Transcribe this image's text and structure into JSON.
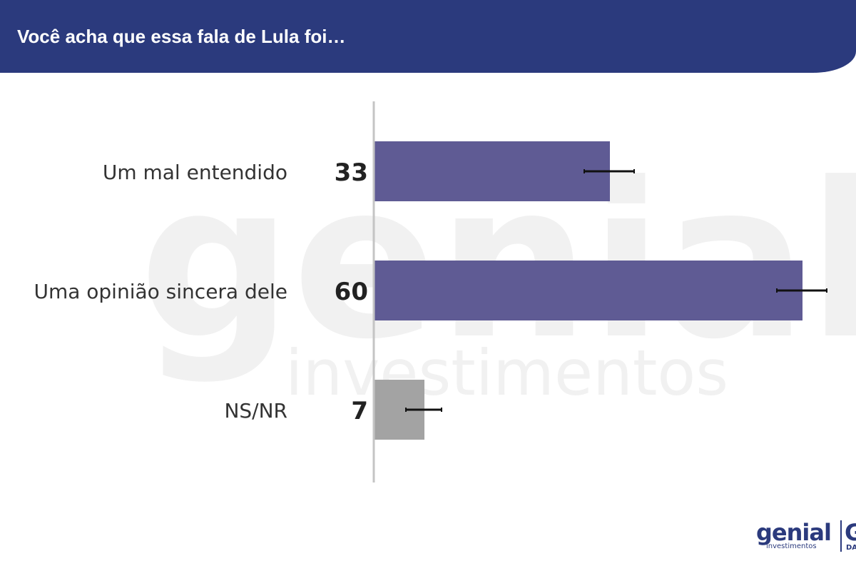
{
  "header": {
    "title": "Você acha que essa fala de Lula foi…"
  },
  "chart_data": {
    "type": "bar",
    "orientation": "horizontal",
    "categories": [
      "Um mal entendido",
      "Uma opinião sincera dele",
      "NS/NR"
    ],
    "values": [
      33,
      60,
      7
    ],
    "error_margin": [
      3.5,
      3.5,
      2.5
    ],
    "xlim": [
      0,
      68
    ],
    "colors": [
      "#5f5b94",
      "#5f5b94",
      "#a3a3a3"
    ],
    "axis_color": "#c4c4c4",
    "error_bar_color": "#111111",
    "label_color": "#333333",
    "value_color": "#222222",
    "grid": false,
    "title": "",
    "xlabel": "",
    "ylabel": ""
  },
  "watermark": {
    "brand": "genial",
    "sub": "investimentos"
  },
  "footer_logo": {
    "brand": "genial",
    "sub": "investimentos",
    "partner_partial": "G",
    "partner_partial_sub": "DA",
    "color": "#2b3a7d"
  }
}
